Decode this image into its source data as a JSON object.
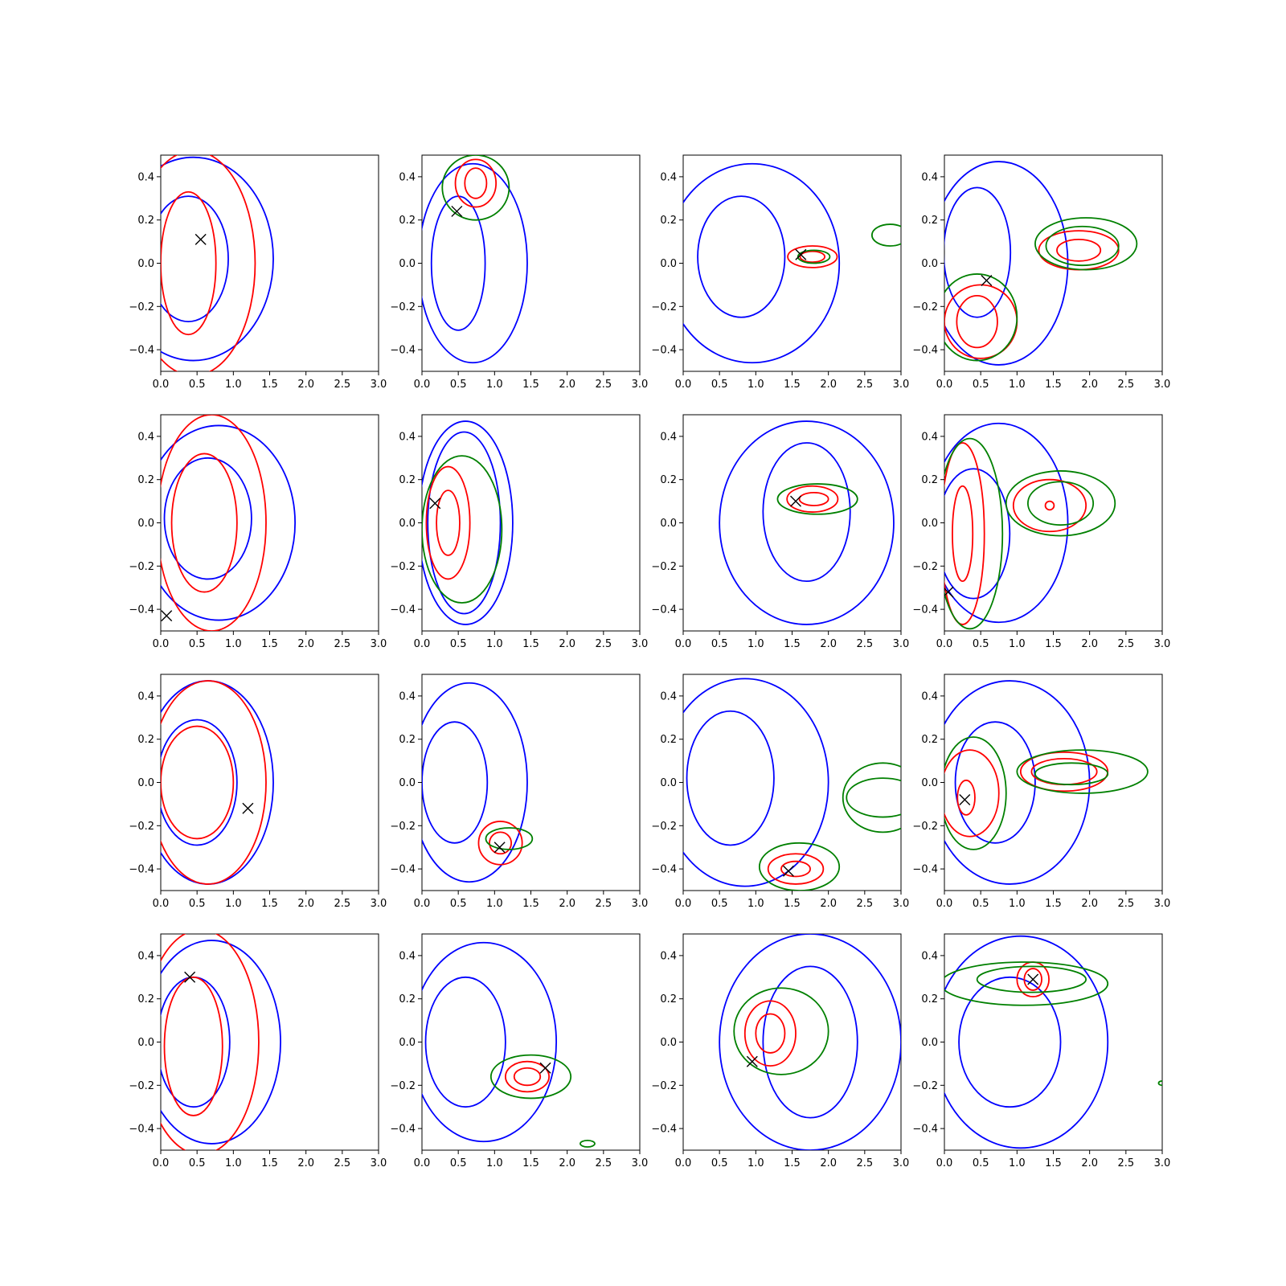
{
  "figure": {
    "rows": 4,
    "cols": 4,
    "xlim": [
      0.0,
      3.0
    ],
    "ylim": [
      -0.5,
      0.5
    ],
    "xticks": [
      "0.0",
      "0.5",
      "1.0",
      "1.5",
      "2.0",
      "2.5",
      "3.0"
    ],
    "yticks": [
      "−0.4",
      "−0.2",
      "0.0",
      "0.2",
      "0.4"
    ],
    "xtick_values": [
      0.0,
      0.5,
      1.0,
      1.5,
      2.0,
      2.5,
      3.0
    ],
    "ytick_values": [
      -0.4,
      -0.2,
      0.0,
      0.2,
      0.4
    ]
  },
  "colors": {
    "blue": "#0000ff",
    "red": "#ff0000",
    "green": "#008000",
    "marker": "#000000"
  },
  "chart_data": [
    {
      "type": "contour",
      "row": 0,
      "col": 0,
      "marker": [
        0.55,
        0.11
      ],
      "blue": [
        {
          "cx": 0.45,
          "cy": 0.02,
          "rx": 1.1,
          "ry": 0.47
        },
        {
          "cx": 0.38,
          "cy": 0.02,
          "rx": 0.55,
          "ry": 0.29
        }
      ],
      "red": [
        {
          "cx": 0.45,
          "cy": 0.0,
          "rx": 0.85,
          "ry": 0.52
        },
        {
          "cx": 0.38,
          "cy": 0.0,
          "rx": 0.38,
          "ry": 0.33
        }
      ],
      "green": []
    },
    {
      "type": "contour",
      "row": 0,
      "col": 1,
      "marker": [
        0.48,
        0.24
      ],
      "blue": [
        {
          "cx": 0.7,
          "cy": 0.0,
          "rx": 0.75,
          "ry": 0.46
        },
        {
          "cx": 0.5,
          "cy": 0.0,
          "rx": 0.37,
          "ry": 0.31
        }
      ],
      "red": [
        {
          "cx": 0.74,
          "cy": 0.37,
          "rx": 0.28,
          "ry": 0.11
        },
        {
          "cx": 0.74,
          "cy": 0.37,
          "rx": 0.15,
          "ry": 0.07
        }
      ],
      "green": [
        {
          "cx": 0.74,
          "cy": 0.35,
          "rx": 0.46,
          "ry": 0.15
        }
      ]
    },
    {
      "type": "contour",
      "row": 0,
      "col": 2,
      "marker": [
        1.62,
        0.04
      ],
      "blue": [
        {
          "cx": 0.95,
          "cy": 0.0,
          "rx": 1.2,
          "ry": 0.46
        },
        {
          "cx": 0.8,
          "cy": 0.03,
          "rx": 0.6,
          "ry": 0.28
        }
      ],
      "red": [
        {
          "cx": 1.78,
          "cy": 0.03,
          "rx": 0.34,
          "ry": 0.05
        },
        {
          "cx": 1.78,
          "cy": 0.03,
          "rx": 0.17,
          "ry": 0.025
        }
      ],
      "green": [
        {
          "cx": 1.8,
          "cy": 0.03,
          "rx": 0.22,
          "ry": 0.03
        },
        {
          "cx": 2.85,
          "cy": 0.13,
          "rx": 0.25,
          "ry": 0.05
        }
      ]
    },
    {
      "type": "contour",
      "row": 0,
      "col": 3,
      "marker": [
        0.58,
        -0.08
      ],
      "blue": [
        {
          "cx": 0.75,
          "cy": 0.0,
          "rx": 0.95,
          "ry": 0.47
        },
        {
          "cx": 0.45,
          "cy": 0.05,
          "rx": 0.46,
          "ry": 0.3
        }
      ],
      "red": [
        {
          "cx": 0.5,
          "cy": -0.27,
          "rx": 0.5,
          "ry": 0.17
        },
        {
          "cx": 0.45,
          "cy": -0.27,
          "rx": 0.28,
          "ry": 0.12
        },
        {
          "cx": 1.85,
          "cy": 0.06,
          "rx": 0.55,
          "ry": 0.09
        },
        {
          "cx": 1.85,
          "cy": 0.06,
          "rx": 0.3,
          "ry": 0.05
        }
      ],
      "green": [
        {
          "cx": 0.45,
          "cy": -0.25,
          "rx": 0.55,
          "ry": 0.2
        },
        {
          "cx": 1.95,
          "cy": 0.09,
          "rx": 0.7,
          "ry": 0.12
        },
        {
          "cx": 1.9,
          "cy": 0.08,
          "rx": 0.5,
          "ry": 0.09
        }
      ]
    },
    {
      "type": "contour",
      "row": 1,
      "col": 0,
      "marker": [
        0.08,
        -0.43
      ],
      "blue": [
        {
          "cx": 0.8,
          "cy": 0.0,
          "rx": 1.05,
          "ry": 0.45
        },
        {
          "cx": 0.65,
          "cy": 0.02,
          "rx": 0.6,
          "ry": 0.28
        }
      ],
      "red": [
        {
          "cx": 0.7,
          "cy": 0.0,
          "rx": 0.75,
          "ry": 0.5
        },
        {
          "cx": 0.6,
          "cy": 0.0,
          "rx": 0.45,
          "ry": 0.32
        }
      ],
      "green": []
    },
    {
      "type": "contour",
      "row": 1,
      "col": 1,
      "marker": [
        0.18,
        0.09
      ],
      "blue": [
        {
          "cx": 0.6,
          "cy": 0.0,
          "rx": 0.65,
          "ry": 0.47
        },
        {
          "cx": 0.58,
          "cy": 0.0,
          "rx": 0.5,
          "ry": 0.42
        }
      ],
      "red": [
        {
          "cx": 0.36,
          "cy": 0.0,
          "rx": 0.3,
          "ry": 0.26
        },
        {
          "cx": 0.36,
          "cy": 0.0,
          "rx": 0.16,
          "ry": 0.15
        }
      ],
      "green": [
        {
          "cx": 0.55,
          "cy": -0.03,
          "rx": 0.55,
          "ry": 0.34
        }
      ]
    },
    {
      "type": "contour",
      "row": 1,
      "col": 2,
      "marker": [
        1.55,
        0.1
      ],
      "blue": [
        {
          "cx": 1.7,
          "cy": 0.0,
          "rx": 1.2,
          "ry": 0.47
        },
        {
          "cx": 1.7,
          "cy": 0.05,
          "rx": 0.6,
          "ry": 0.32
        }
      ],
      "red": [
        {
          "cx": 1.78,
          "cy": 0.11,
          "rx": 0.35,
          "ry": 0.06
        },
        {
          "cx": 1.8,
          "cy": 0.11,
          "rx": 0.2,
          "ry": 0.03
        }
      ],
      "green": [
        {
          "cx": 1.85,
          "cy": 0.11,
          "rx": 0.55,
          "ry": 0.07
        }
      ]
    },
    {
      "type": "contour",
      "row": 1,
      "col": 3,
      "marker": [
        0.05,
        -0.32
      ],
      "blue": [
        {
          "cx": 0.75,
          "cy": 0.0,
          "rx": 0.95,
          "ry": 0.46
        },
        {
          "cx": 0.4,
          "cy": -0.05,
          "rx": 0.5,
          "ry": 0.3
        }
      ],
      "red": [
        {
          "cx": 0.25,
          "cy": -0.05,
          "rx": 0.3,
          "ry": 0.42
        },
        {
          "cx": 0.25,
          "cy": -0.05,
          "rx": 0.14,
          "ry": 0.22
        },
        {
          "cx": 1.45,
          "cy": 0.08,
          "rx": 0.5,
          "ry": 0.12
        },
        {
          "cx": 1.45,
          "cy": 0.08,
          "rx": 0.06,
          "ry": 0.02
        }
      ],
      "green": [
        {
          "cx": 0.35,
          "cy": -0.05,
          "rx": 0.45,
          "ry": 0.44
        },
        {
          "cx": 1.6,
          "cy": 0.09,
          "rx": 0.75,
          "ry": 0.15
        },
        {
          "cx": 1.6,
          "cy": 0.09,
          "rx": 0.45,
          "ry": 0.1
        }
      ]
    },
    {
      "type": "contour",
      "row": 2,
      "col": 0,
      "marker": [
        1.2,
        -0.12
      ],
      "blue": [
        {
          "cx": 0.65,
          "cy": 0.0,
          "rx": 0.9,
          "ry": 0.47
        },
        {
          "cx": 0.5,
          "cy": 0.0,
          "rx": 0.55,
          "ry": 0.29
        }
      ],
      "red": [
        {
          "cx": 0.65,
          "cy": 0.0,
          "rx": 0.8,
          "ry": 0.47
        },
        {
          "cx": 0.5,
          "cy": 0.0,
          "rx": 0.5,
          "ry": 0.26
        }
      ],
      "green": []
    },
    {
      "type": "contour",
      "row": 2,
      "col": 1,
      "marker": [
        1.07,
        -0.3
      ],
      "blue": [
        {
          "cx": 0.65,
          "cy": 0.0,
          "rx": 0.8,
          "ry": 0.46
        },
        {
          "cx": 0.45,
          "cy": 0.0,
          "rx": 0.45,
          "ry": 0.28
        }
      ],
      "red": [
        {
          "cx": 1.08,
          "cy": -0.28,
          "rx": 0.3,
          "ry": 0.1
        },
        {
          "cx": 1.08,
          "cy": -0.28,
          "rx": 0.15,
          "ry": 0.05
        }
      ],
      "green": [
        {
          "cx": 1.2,
          "cy": -0.26,
          "rx": 0.32,
          "ry": 0.05
        }
      ]
    },
    {
      "type": "contour",
      "row": 2,
      "col": 2,
      "marker": [
        1.45,
        -0.41
      ],
      "blue": [
        {
          "cx": 0.85,
          "cy": 0.0,
          "rx": 1.15,
          "ry": 0.48
        },
        {
          "cx": 0.65,
          "cy": 0.02,
          "rx": 0.6,
          "ry": 0.31
        }
      ],
      "red": [
        {
          "cx": 1.55,
          "cy": -0.4,
          "rx": 0.38,
          "ry": 0.07
        },
        {
          "cx": 1.55,
          "cy": -0.4,
          "rx": 0.2,
          "ry": 0.035
        }
      ],
      "green": [
        {
          "cx": 1.6,
          "cy": -0.39,
          "rx": 0.55,
          "ry": 0.11
        },
        {
          "cx": 2.75,
          "cy": -0.07,
          "rx": 0.5,
          "ry": 0.09
        },
        {
          "cx": 2.75,
          "cy": -0.07,
          "rx": 0.55,
          "ry": 0.16
        }
      ]
    },
    {
      "type": "contour",
      "row": 2,
      "col": 3,
      "marker": [
        0.28,
        -0.08
      ],
      "blue": [
        {
          "cx": 0.9,
          "cy": 0.0,
          "rx": 1.1,
          "ry": 0.47
        },
        {
          "cx": 0.7,
          "cy": 0.0,
          "rx": 0.55,
          "ry": 0.28
        }
      ],
      "red": [
        {
          "cx": 0.35,
          "cy": -0.05,
          "rx": 0.4,
          "ry": 0.2
        },
        {
          "cx": 0.3,
          "cy": -0.07,
          "rx": 0.12,
          "ry": 0.08
        },
        {
          "cx": 1.65,
          "cy": 0.05,
          "rx": 0.6,
          "ry": 0.09
        },
        {
          "cx": 1.65,
          "cy": 0.05,
          "rx": 0.45,
          "ry": 0.06
        }
      ],
      "green": [
        {
          "cx": 0.4,
          "cy": -0.05,
          "rx": 0.45,
          "ry": 0.26
        },
        {
          "cx": 1.9,
          "cy": 0.05,
          "rx": 0.9,
          "ry": 0.1
        },
        {
          "cx": 1.75,
          "cy": 0.04,
          "rx": 0.5,
          "ry": 0.05
        }
      ]
    },
    {
      "type": "contour",
      "row": 3,
      "col": 0,
      "marker": [
        0.4,
        0.3
      ],
      "blue": [
        {
          "cx": 0.7,
          "cy": 0.0,
          "rx": 0.95,
          "ry": 0.47
        },
        {
          "cx": 0.45,
          "cy": 0.0,
          "rx": 0.5,
          "ry": 0.3
        }
      ],
      "red": [
        {
          "cx": 0.55,
          "cy": 0.0,
          "rx": 0.8,
          "ry": 0.52
        },
        {
          "cx": 0.45,
          "cy": -0.02,
          "rx": 0.4,
          "ry": 0.32
        }
      ],
      "green": []
    },
    {
      "type": "contour",
      "row": 3,
      "col": 1,
      "marker": [
        1.7,
        -0.12
      ],
      "blue": [
        {
          "cx": 0.85,
          "cy": 0.0,
          "rx": 1.0,
          "ry": 0.46
        },
        {
          "cx": 0.6,
          "cy": 0.0,
          "rx": 0.55,
          "ry": 0.3
        }
      ],
      "red": [
        {
          "cx": 1.45,
          "cy": -0.16,
          "rx": 0.3,
          "ry": 0.07
        },
        {
          "cx": 1.45,
          "cy": -0.16,
          "rx": 0.18,
          "ry": 0.04
        }
      ],
      "green": [
        {
          "cx": 1.5,
          "cy": -0.16,
          "rx": 0.55,
          "ry": 0.1
        },
        {
          "cx": 2.28,
          "cy": -0.47,
          "rx": 0.1,
          "ry": 0.015
        }
      ]
    },
    {
      "type": "contour",
      "row": 3,
      "col": 2,
      "marker": [
        0.95,
        -0.09
      ],
      "blue": [
        {
          "cx": 1.75,
          "cy": 0.0,
          "rx": 1.25,
          "ry": 0.5
        },
        {
          "cx": 1.75,
          "cy": 0.0,
          "rx": 0.65,
          "ry": 0.35
        }
      ],
      "red": [
        {
          "cx": 1.2,
          "cy": 0.04,
          "rx": 0.35,
          "ry": 0.15
        },
        {
          "cx": 1.2,
          "cy": 0.04,
          "rx": 0.2,
          "ry": 0.09
        }
      ],
      "green": [
        {
          "cx": 1.35,
          "cy": 0.05,
          "rx": 0.65,
          "ry": 0.2
        }
      ]
    },
    {
      "type": "contour",
      "row": 3,
      "col": 3,
      "marker": [
        1.22,
        0.29
      ],
      "blue": [
        {
          "cx": 1.05,
          "cy": 0.0,
          "rx": 1.2,
          "ry": 0.49
        },
        {
          "cx": 0.9,
          "cy": 0.0,
          "rx": 0.7,
          "ry": 0.3
        }
      ],
      "red": [
        {
          "cx": 1.22,
          "cy": 0.29,
          "rx": 0.22,
          "ry": 0.08
        },
        {
          "cx": 1.22,
          "cy": 0.29,
          "rx": 0.12,
          "ry": 0.05
        }
      ],
      "green": [
        {
          "cx": 1.2,
          "cy": 0.29,
          "rx": 0.75,
          "ry": 0.06
        },
        {
          "cx": 1.1,
          "cy": 0.27,
          "rx": 1.15,
          "ry": 0.1
        },
        {
          "cx": 3.0,
          "cy": -0.19,
          "rx": 0.05,
          "ry": 0.01
        }
      ]
    }
  ]
}
